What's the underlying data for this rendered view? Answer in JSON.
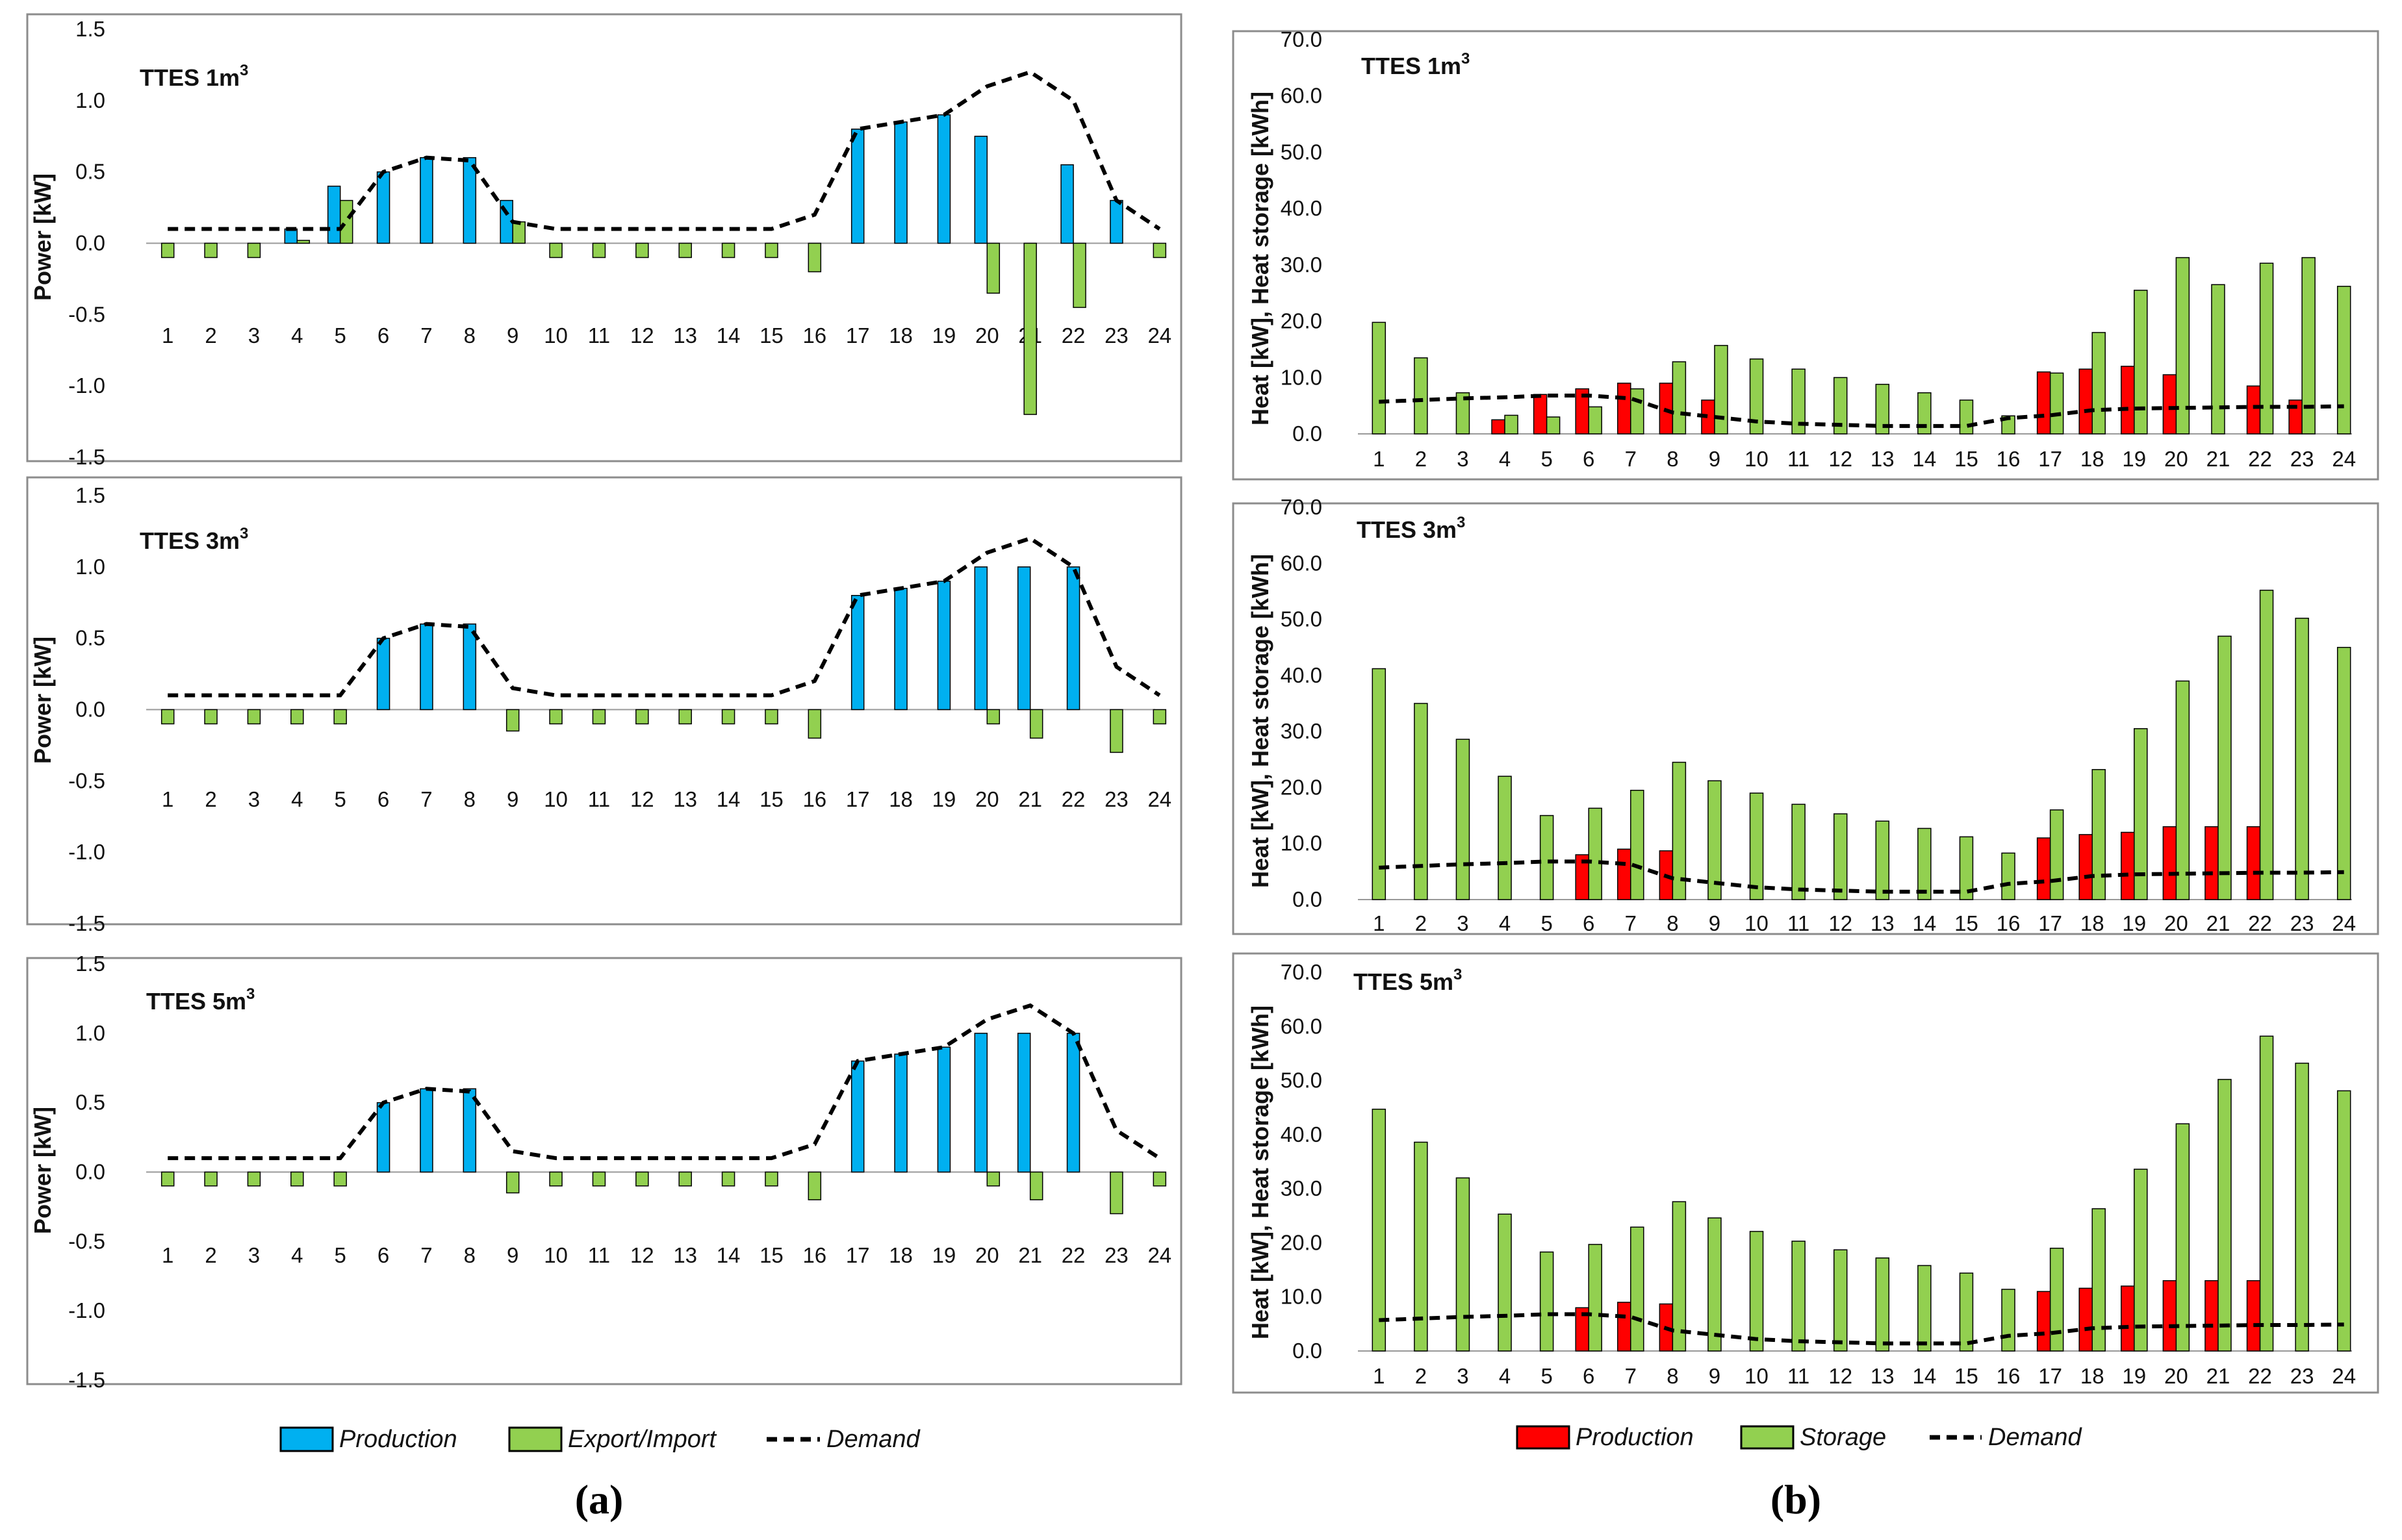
{
  "colors": {
    "production_blue": "#00B0F0",
    "production_red": "#FF0000",
    "export_green": "#92D050",
    "storage_green": "#92D050",
    "demand": "#000000"
  },
  "captions": {
    "a": "(a)",
    "b": "(b)"
  },
  "legend_a": {
    "production": "Production",
    "export": "Export/Import",
    "demand": "Demand"
  },
  "legend_b": {
    "production": "Production",
    "storage": "Storage",
    "demand": "Demand"
  },
  "chart_data": [
    {
      "id": "a1",
      "type": "bar",
      "title": "TTES 1m",
      "title_sup": "3",
      "ylabel": "Power [kW]",
      "xlabel": "",
      "ylim": [
        -1.5,
        1.5
      ],
      "yticks": [
        "1.5",
        "1.0",
        "0.5",
        "0.0",
        "-0.5",
        "-1.0",
        "-1.5"
      ],
      "categories": [
        "1",
        "2",
        "3",
        "4",
        "5",
        "6",
        "7",
        "8",
        "9",
        "10",
        "11",
        "12",
        "13",
        "14",
        "15",
        "16",
        "17",
        "18",
        "19",
        "20",
        "21",
        "22",
        "23",
        "24"
      ],
      "series": [
        {
          "name": "Production",
          "values": [
            0,
            0,
            0,
            0.1,
            0.4,
            0.5,
            0.6,
            0.6,
            0.3,
            0,
            0,
            0,
            0,
            0,
            0,
            0,
            0.8,
            0.85,
            0.9,
            0.75,
            0,
            0.55,
            0.3,
            0
          ]
        },
        {
          "name": "Export/Import",
          "values": [
            -0.1,
            -0.1,
            -0.1,
            0.02,
            0.3,
            0,
            0,
            0,
            0.15,
            -0.1,
            -0.1,
            -0.1,
            -0.1,
            -0.1,
            -0.1,
            -0.2,
            0,
            0,
            0,
            -0.35,
            -1.2,
            -0.45,
            0,
            -0.1
          ]
        },
        {
          "name": "Demand",
          "values": [
            0.1,
            0.1,
            0.1,
            0.1,
            0.1,
            0.5,
            0.6,
            0.58,
            0.15,
            0.1,
            0.1,
            0.1,
            0.1,
            0.1,
            0.1,
            0.2,
            0.8,
            0.85,
            0.9,
            1.1,
            1.2,
            1.0,
            0.3,
            0.1
          ]
        }
      ]
    },
    {
      "id": "a2",
      "type": "bar",
      "title": "TTES 3m",
      "title_sup": "3",
      "ylabel": "Power [kW]",
      "xlabel": "",
      "ylim": [
        -1.5,
        1.5
      ],
      "yticks": [
        "1.5",
        "1.0",
        "0.5",
        "0.0",
        "-0.5",
        "-1.0",
        "-1.5"
      ],
      "categories": [
        "1",
        "2",
        "3",
        "4",
        "5",
        "6",
        "7",
        "8",
        "9",
        "10",
        "11",
        "12",
        "13",
        "14",
        "15",
        "16",
        "17",
        "18",
        "19",
        "20",
        "21",
        "22",
        "23",
        "24"
      ],
      "series": [
        {
          "name": "Production",
          "values": [
            0,
            0,
            0,
            0,
            0,
            0.5,
            0.6,
            0.6,
            0,
            0,
            0,
            0,
            0,
            0,
            0,
            0,
            0.8,
            0.85,
            0.9,
            1.0,
            1.0,
            1.0,
            0,
            0
          ]
        },
        {
          "name": "Export/Import",
          "values": [
            -0.1,
            -0.1,
            -0.1,
            -0.1,
            -0.1,
            0,
            0,
            0,
            -0.15,
            -0.1,
            -0.1,
            -0.1,
            -0.1,
            -0.1,
            -0.1,
            -0.2,
            0,
            0,
            0,
            -0.1,
            -0.2,
            0,
            -0.3,
            -0.1
          ]
        },
        {
          "name": "Demand",
          "values": [
            0.1,
            0.1,
            0.1,
            0.1,
            0.1,
            0.5,
            0.6,
            0.58,
            0.15,
            0.1,
            0.1,
            0.1,
            0.1,
            0.1,
            0.1,
            0.2,
            0.8,
            0.85,
            0.9,
            1.1,
            1.2,
            1.0,
            0.3,
            0.1
          ]
        }
      ]
    },
    {
      "id": "a3",
      "type": "bar",
      "title": "TTES 5m",
      "title_sup": "3",
      "ylabel": "Power [kW]",
      "xlabel": "",
      "ylim": [
        -1.5,
        1.5
      ],
      "yticks": [
        "1.5",
        "1.0",
        "0.5",
        "0.0",
        "-0.5",
        "-1.0",
        "-1.5"
      ],
      "categories": [
        "1",
        "2",
        "3",
        "4",
        "5",
        "6",
        "7",
        "8",
        "9",
        "10",
        "11",
        "12",
        "13",
        "14",
        "15",
        "16",
        "17",
        "18",
        "19",
        "20",
        "21",
        "22",
        "23",
        "24"
      ],
      "series": [
        {
          "name": "Production",
          "values": [
            0,
            0,
            0,
            0,
            0,
            0.5,
            0.6,
            0.6,
            0,
            0,
            0,
            0,
            0,
            0,
            0,
            0,
            0.8,
            0.85,
            0.9,
            1.0,
            1.0,
            1.0,
            0,
            0
          ]
        },
        {
          "name": "Export/Import",
          "values": [
            -0.1,
            -0.1,
            -0.1,
            -0.1,
            -0.1,
            0,
            0,
            0,
            -0.15,
            -0.1,
            -0.1,
            -0.1,
            -0.1,
            -0.1,
            -0.1,
            -0.2,
            0,
            0,
            0,
            -0.1,
            -0.2,
            0,
            -0.3,
            -0.1
          ]
        },
        {
          "name": "Demand",
          "values": [
            0.1,
            0.1,
            0.1,
            0.1,
            0.1,
            0.5,
            0.6,
            0.58,
            0.15,
            0.1,
            0.1,
            0.1,
            0.1,
            0.1,
            0.1,
            0.2,
            0.8,
            0.85,
            0.9,
            1.1,
            1.2,
            1.0,
            0.3,
            0.1
          ]
        }
      ]
    },
    {
      "id": "b1",
      "type": "bar",
      "title": "TTES 1m",
      "title_sup": "3",
      "ylabel": "Heat [kW], Heat storage [kWh]",
      "xlabel": "",
      "ylim": [
        0,
        70
      ],
      "yticks": [
        "70.0",
        "60.0",
        "50.0",
        "40.0",
        "30.0",
        "20.0",
        "10.0",
        "0.0"
      ],
      "categories": [
        "1",
        "2",
        "3",
        "4",
        "5",
        "6",
        "7",
        "8",
        "9",
        "10",
        "11",
        "12",
        "13",
        "14",
        "15",
        "16",
        "17",
        "18",
        "19",
        "20",
        "21",
        "22",
        "23",
        "24"
      ],
      "series": [
        {
          "name": "Production",
          "values": [
            0,
            0,
            0,
            2.5,
            7,
            8,
            9,
            9,
            6,
            0,
            0,
            0,
            0,
            0,
            0,
            0,
            11,
            11.5,
            12,
            10.5,
            0,
            8.5,
            6,
            0
          ]
        },
        {
          "name": "Storage",
          "values": [
            19.8,
            13.5,
            7.3,
            3.3,
            3,
            4.8,
            8,
            12.8,
            15.7,
            13.3,
            11.5,
            10,
            8.8,
            7.3,
            6,
            3.2,
            10.8,
            18,
            25.5,
            31.3,
            26.5,
            30.3,
            31.3,
            26.2
          ]
        },
        {
          "name": "Demand",
          "values": [
            5.7,
            6,
            6.3,
            6.5,
            6.8,
            6.8,
            6.3,
            3.8,
            3,
            2.2,
            1.8,
            1.6,
            1.4,
            1.4,
            1.4,
            2.8,
            3.3,
            4.2,
            4.5,
            4.6,
            4.7,
            4.8,
            4.8,
            4.9
          ]
        }
      ]
    },
    {
      "id": "b2",
      "type": "bar",
      "title": "TTES 3m",
      "title_sup": "3",
      "ylabel": "Heat [kW], Heat storage [kWh]",
      "xlabel": "",
      "ylim": [
        0,
        70
      ],
      "yticks": [
        "70.0",
        "60.0",
        "50.0",
        "40.0",
        "30.0",
        "20.0",
        "10.0",
        "0.0"
      ],
      "categories": [
        "1",
        "2",
        "3",
        "4",
        "5",
        "6",
        "7",
        "8",
        "9",
        "10",
        "11",
        "12",
        "13",
        "14",
        "15",
        "16",
        "17",
        "18",
        "19",
        "20",
        "21",
        "22",
        "23",
        "24"
      ],
      "series": [
        {
          "name": "Production",
          "values": [
            0,
            0,
            0,
            0,
            0,
            8,
            9,
            8.7,
            0,
            0,
            0,
            0,
            0,
            0,
            0,
            0,
            11,
            11.6,
            12,
            13,
            13,
            13,
            0,
            0
          ]
        },
        {
          "name": "Storage",
          "values": [
            41.2,
            35,
            28.6,
            22,
            15,
            16.3,
            19.5,
            24.5,
            21.2,
            19,
            17,
            15.3,
            14,
            12.7,
            11.2,
            8.3,
            16,
            23.2,
            30.5,
            39,
            47,
            55.2,
            50.2,
            45
          ]
        },
        {
          "name": "Demand",
          "values": [
            5.7,
            6,
            6.3,
            6.5,
            6.8,
            6.8,
            6.3,
            3.8,
            3,
            2.2,
            1.8,
            1.6,
            1.4,
            1.4,
            1.4,
            2.8,
            3.3,
            4.2,
            4.5,
            4.6,
            4.7,
            4.8,
            4.8,
            4.9
          ]
        }
      ]
    },
    {
      "id": "b3",
      "type": "bar",
      "title": "TTES 5m",
      "title_sup": "3",
      "ylabel": "Heat [kW], Heat storage [kWh]",
      "xlabel": "",
      "ylim": [
        0,
        70
      ],
      "yticks": [
        "70.0",
        "60.0",
        "50.0",
        "40.0",
        "30.0",
        "20.0",
        "10.0",
        "0.0"
      ],
      "categories": [
        "1",
        "2",
        "3",
        "4",
        "5",
        "6",
        "7",
        "8",
        "9",
        "10",
        "11",
        "12",
        "13",
        "14",
        "15",
        "16",
        "17",
        "18",
        "19",
        "20",
        "21",
        "22",
        "23",
        "24"
      ],
      "series": [
        {
          "name": "Production",
          "values": [
            0,
            0,
            0,
            0,
            0,
            8,
            9,
            8.7,
            0,
            0,
            0,
            0,
            0,
            0,
            0,
            0,
            11,
            11.6,
            12,
            13,
            13,
            13,
            0,
            0
          ]
        },
        {
          "name": "Storage",
          "values": [
            44.7,
            38.6,
            32,
            25.3,
            18.3,
            19.7,
            22.9,
            27.6,
            24.6,
            22.1,
            20.3,
            18.7,
            17.2,
            15.8,
            14.4,
            11.4,
            19,
            26.3,
            33.6,
            42,
            50.2,
            58.2,
            53.2,
            48.1
          ]
        },
        {
          "name": "Demand",
          "values": [
            5.7,
            6,
            6.3,
            6.5,
            6.8,
            6.8,
            6.3,
            3.8,
            3,
            2.2,
            1.8,
            1.6,
            1.4,
            1.4,
            1.4,
            2.8,
            3.3,
            4.2,
            4.5,
            4.6,
            4.7,
            4.8,
            4.8,
            4.9
          ]
        }
      ]
    }
  ]
}
